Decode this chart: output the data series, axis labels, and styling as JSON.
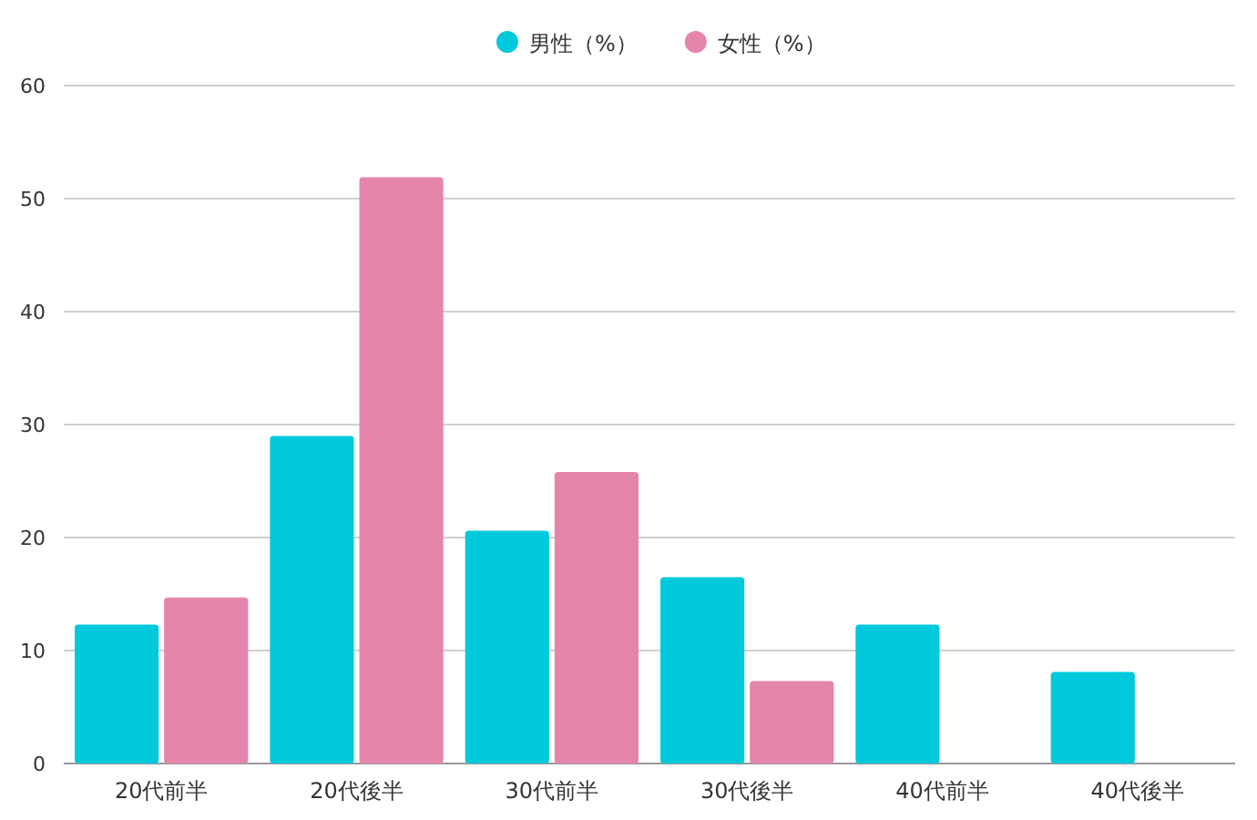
{
  "chart_data": {
    "type": "bar",
    "categories": [
      "20代前半",
      "20代後半",
      "30代前半",
      "30代後半",
      "40代前半",
      "40代後半"
    ],
    "series": [
      {
        "name": "男性（%）",
        "color": "#00c9dc",
        "values": [
          12.3,
          29.0,
          20.6,
          16.5,
          12.3,
          8.1
        ]
      },
      {
        "name": "女性（%）",
        "color": "#e585ab",
        "values": [
          14.7,
          51.9,
          25.8,
          7.3,
          0,
          0
        ]
      }
    ],
    "ylim": [
      0,
      60
    ],
    "yticks": [
      0,
      10,
      20,
      30,
      40,
      50,
      60
    ],
    "grid": "y",
    "legend": "top"
  }
}
